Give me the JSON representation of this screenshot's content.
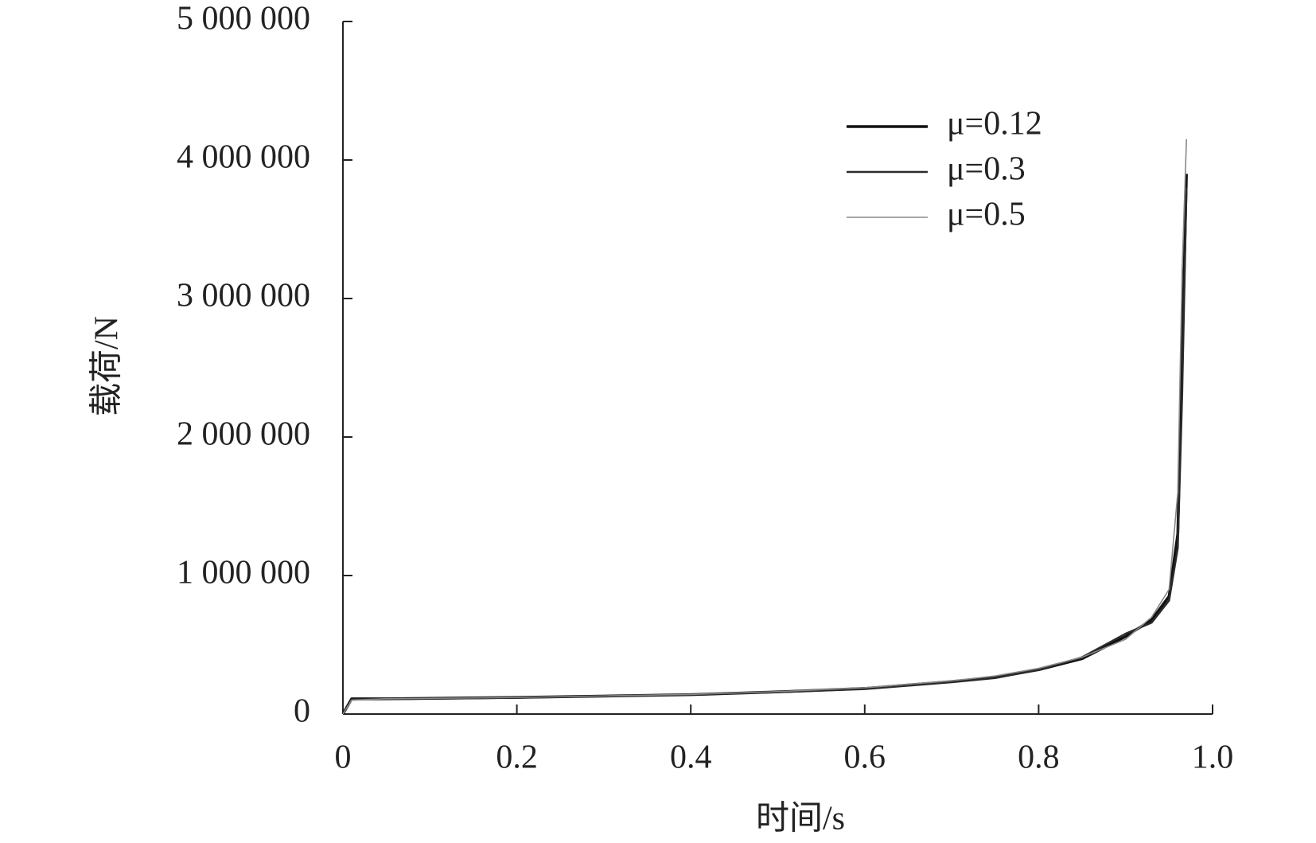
{
  "chart_data": {
    "type": "line",
    "x_label": "时间/s",
    "y_label": "载荷/N",
    "x": [
      0,
      0.01,
      0.05,
      0.2,
      0.4,
      0.5,
      0.6,
      0.7,
      0.75,
      0.8,
      0.85,
      0.9,
      0.93,
      0.95,
      0.96,
      0.965,
      0.97
    ],
    "series": [
      {
        "name": "μ=0.12",
        "color": "#111111",
        "values": [
          0,
          110000,
          110000,
          120000,
          140000,
          160000,
          185000,
          235000,
          265000,
          320000,
          400000,
          560000,
          680000,
          850000,
          1300000,
          2600000,
          3900000
        ]
      },
      {
        "name": "μ=0.3",
        "color": "#2a2a2a",
        "values": [
          0,
          105000,
          108000,
          118000,
          140000,
          158000,
          180000,
          230000,
          260000,
          320000,
          410000,
          580000,
          660000,
          820000,
          1200000,
          2300000,
          3800000
        ]
      },
      {
        "name": "μ=0.5",
        "color": "#888888",
        "values": [
          0,
          100000,
          110000,
          120000,
          142000,
          162000,
          190000,
          240000,
          275000,
          330000,
          410000,
          540000,
          700000,
          900000,
          1600000,
          3200000,
          4150000
        ]
      }
    ],
    "xlim": [
      0,
      1
    ],
    "xticks": [
      0,
      0.2,
      0.4,
      0.6,
      0.8,
      {
        "value": 1,
        "label": "1.0"
      }
    ],
    "ylim": [
      0,
      5000000
    ],
    "yticks": [
      0,
      {
        "value": 1000000,
        "label": "1 000 000"
      },
      {
        "value": 2000000,
        "label": "2 000 000"
      },
      {
        "value": 3000000,
        "label": "3 000 000"
      },
      {
        "value": 4000000,
        "label": "4 000 000"
      },
      {
        "value": 5000000,
        "label": "5 000 000"
      }
    ],
    "grid": false,
    "legend": "upper right"
  }
}
